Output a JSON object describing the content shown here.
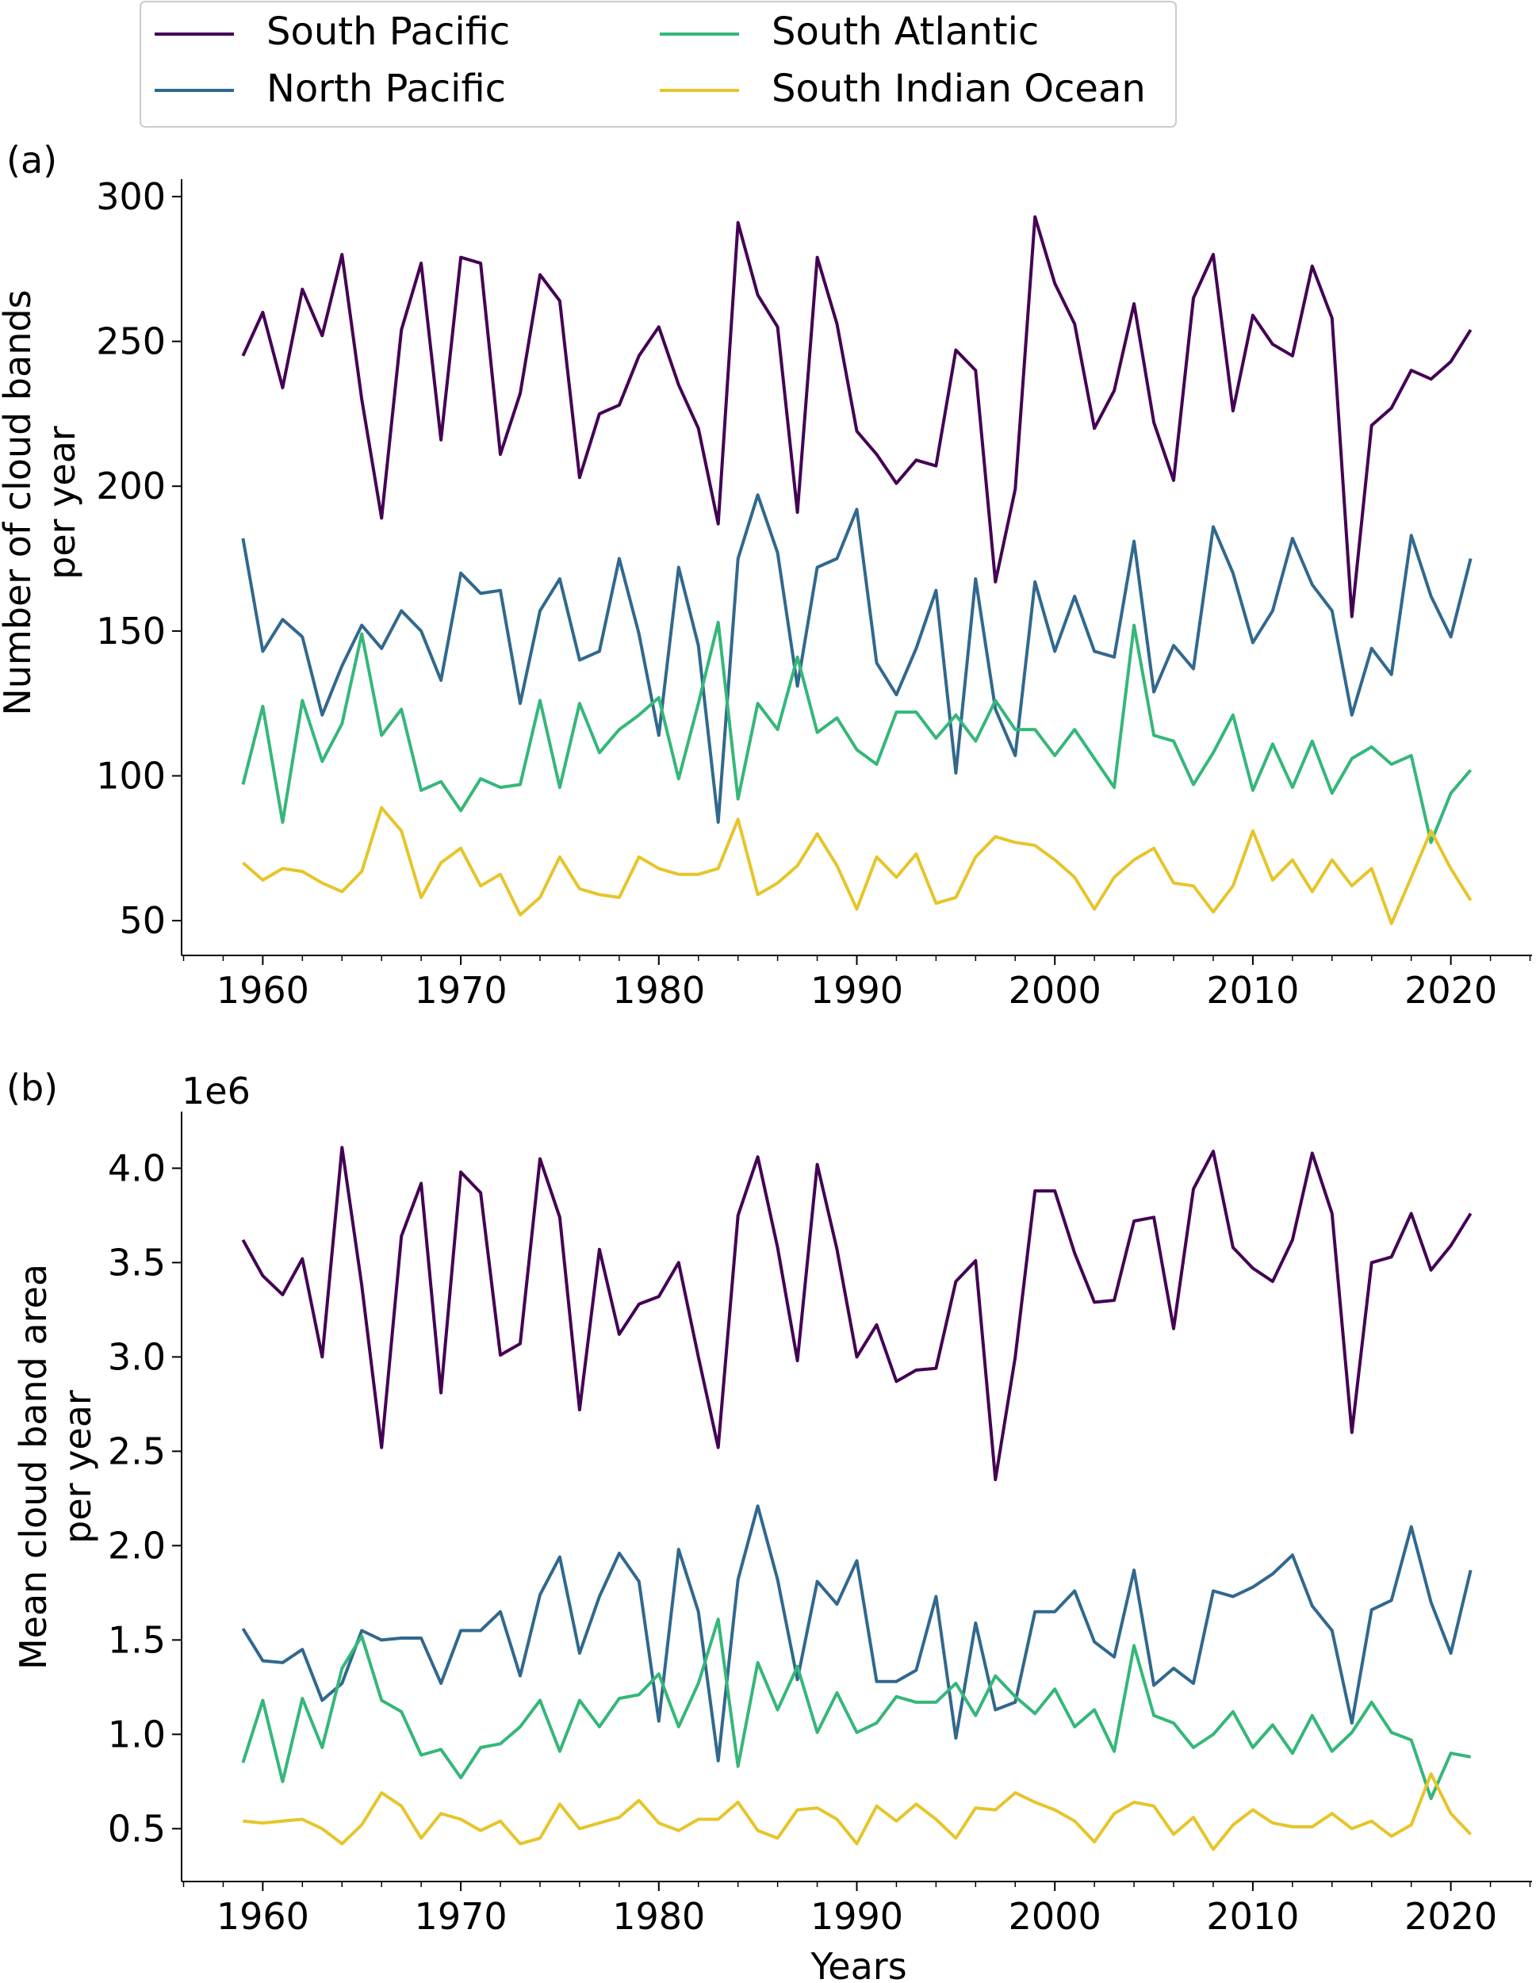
{
  "legend": {
    "location": "top, above panel (a)",
    "entries": [
      {
        "label": "South Pacific",
        "color": "#440154"
      },
      {
        "label": "North Pacific",
        "color": "#31688e"
      },
      {
        "label": "South Atlantic",
        "color": "#35b779"
      },
      {
        "label": "South Indian Ocean",
        "color": "#e6c52a"
      }
    ]
  },
  "chart_data": [
    {
      "type": "line",
      "panel_label": "(a)",
      "xlabel": "",
      "ylabel": "Number of cloud bands\nper year",
      "xlim": [
        1955.9,
        2024.1
      ],
      "ylim": [
        38,
        306
      ],
      "x_ticks": [
        1960,
        1970,
        1980,
        1990,
        2000,
        2010,
        2020
      ],
      "y_ticks": [
        50,
        100,
        150,
        200,
        250,
        300
      ],
      "x_start": 1959,
      "grid": false,
      "legend": "top-center",
      "series": [
        {
          "name": "South Pacific",
          "color": "#440154",
          "values": [
            245,
            260,
            234,
            268,
            252,
            280,
            230,
            189,
            254,
            277,
            216,
            279,
            277,
            211,
            232,
            273,
            264,
            203,
            225,
            228,
            245,
            255,
            235,
            220,
            187,
            291,
            266,
            255,
            191,
            279,
            256,
            219,
            211,
            201,
            209,
            207,
            247,
            240,
            167,
            199,
            293,
            270,
            256,
            220,
            233,
            263,
            222,
            202,
            265,
            280,
            226,
            259,
            249,
            245,
            276,
            258,
            155,
            221,
            227,
            240,
            237,
            243,
            254
          ]
        },
        {
          "name": "North Pacific",
          "color": "#31688e",
          "values": [
            182,
            143,
            154,
            148,
            121,
            138,
            152,
            144,
            157,
            150,
            133,
            170,
            163,
            164,
            125,
            157,
            168,
            140,
            143,
            175,
            149,
            114,
            172,
            145,
            84,
            175,
            197,
            177,
            131,
            172,
            175,
            192,
            139,
            128,
            144,
            164,
            101,
            168,
            123,
            107,
            167,
            143,
            162,
            143,
            141,
            181,
            129,
            145,
            137,
            186,
            170,
            146,
            157,
            182,
            166,
            157,
            121,
            144,
            135,
            183,
            162,
            148,
            175
          ]
        },
        {
          "name": "South Atlantic",
          "color": "#35b779",
          "values": [
            97,
            124,
            84,
            126,
            105,
            118,
            149,
            114,
            123,
            95,
            98,
            88,
            99,
            96,
            97,
            126,
            96,
            125,
            108,
            116,
            121,
            127,
            99,
            125,
            153,
            92,
            125,
            116,
            141,
            115,
            120,
            109,
            104,
            122,
            122,
            113,
            121,
            112,
            126,
            116,
            116,
            107,
            116,
            106,
            96,
            152,
            114,
            112,
            97,
            108,
            121,
            95,
            111,
            96,
            112,
            94,
            106,
            110,
            104,
            107,
            77,
            94,
            102
          ]
        },
        {
          "name": "South Indian Ocean",
          "color": "#e6c52a",
          "values": [
            70,
            64,
            68,
            67,
            63,
            60,
            67,
            89,
            81,
            58,
            70,
            75,
            62,
            66,
            52,
            58,
            72,
            61,
            59,
            58,
            72,
            68,
            66,
            66,
            68,
            85,
            59,
            63,
            69,
            80,
            69,
            54,
            72,
            65,
            73,
            56,
            58,
            72,
            79,
            77,
            76,
            71,
            65,
            54,
            65,
            71,
            75,
            63,
            62,
            53,
            62,
            81,
            64,
            71,
            60,
            71,
            62,
            68,
            49,
            65,
            81,
            68,
            57
          ]
        }
      ]
    },
    {
      "type": "line",
      "panel_label": "(b)",
      "xlabel": "Years",
      "ylabel": "Mean cloud band area\nper year",
      "offset_text": "1e6",
      "xlim": [
        1955.9,
        2024.1
      ],
      "ylim": [
        0.22,
        4.3
      ],
      "x_ticks": [
        1960,
        1970,
        1980,
        1990,
        2000,
        2010,
        2020
      ],
      "y_ticks": [
        0.5,
        1.0,
        1.5,
        2.0,
        2.5,
        3.0,
        3.5,
        4.0
      ],
      "y_tick_labels": [
        "0.5",
        "1.0",
        "1.5",
        "2.0",
        "2.5",
        "3.0",
        "3.5",
        "4.0"
      ],
      "x_start": 1959,
      "grid": false,
      "legend": "shared, top of figure",
      "series": [
        {
          "name": "South Pacific",
          "color": "#440154",
          "values": [
            3.62,
            3.43,
            3.33,
            3.52,
            3.0,
            4.11,
            3.38,
            2.52,
            3.64,
            3.92,
            2.81,
            3.98,
            3.87,
            3.01,
            3.07,
            4.05,
            3.74,
            2.72,
            3.57,
            3.12,
            3.28,
            3.32,
            3.5,
            3.0,
            2.52,
            3.75,
            4.06,
            3.58,
            2.98,
            4.02,
            3.57,
            3.0,
            3.17,
            2.87,
            2.93,
            2.94,
            3.4,
            3.51,
            2.35,
            3.0,
            3.88,
            3.88,
            3.55,
            3.29,
            3.3,
            3.72,
            3.74,
            3.15,
            3.89,
            4.09,
            3.58,
            3.47,
            3.4,
            3.62,
            4.08,
            3.76,
            2.6,
            3.5,
            3.53,
            3.76,
            3.46,
            3.59,
            3.76
          ]
        },
        {
          "name": "North Pacific",
          "color": "#31688e",
          "values": [
            1.56,
            1.39,
            1.38,
            1.45,
            1.18,
            1.27,
            1.55,
            1.5,
            1.51,
            1.51,
            1.27,
            1.55,
            1.55,
            1.65,
            1.31,
            1.74,
            1.94,
            1.43,
            1.73,
            1.96,
            1.81,
            1.07,
            1.98,
            1.65,
            0.86,
            1.82,
            2.21,
            1.82,
            1.29,
            1.81,
            1.69,
            1.92,
            1.28,
            1.28,
            1.34,
            1.73,
            0.98,
            1.59,
            1.13,
            1.17,
            1.65,
            1.65,
            1.76,
            1.49,
            1.41,
            1.87,
            1.26,
            1.35,
            1.27,
            1.76,
            1.73,
            1.78,
            1.85,
            1.95,
            1.68,
            1.55,
            1.06,
            1.66,
            1.71,
            2.1,
            1.7,
            1.43,
            1.87
          ]
        },
        {
          "name": "South Atlantic",
          "color": "#35b779",
          "values": [
            0.85,
            1.18,
            0.75,
            1.19,
            0.93,
            1.35,
            1.52,
            1.18,
            1.12,
            0.89,
            0.92,
            0.77,
            0.93,
            0.95,
            1.04,
            1.18,
            0.91,
            1.18,
            1.04,
            1.19,
            1.21,
            1.32,
            1.04,
            1.27,
            1.61,
            0.83,
            1.38,
            1.13,
            1.36,
            1.01,
            1.22,
            1.01,
            1.06,
            1.2,
            1.17,
            1.17,
            1.27,
            1.1,
            1.31,
            1.2,
            1.11,
            1.24,
            1.04,
            1.13,
            0.91,
            1.47,
            1.1,
            1.06,
            0.93,
            1.0,
            1.12,
            0.93,
            1.05,
            0.9,
            1.1,
            0.91,
            1.01,
            1.17,
            1.01,
            0.97,
            0.66,
            0.9,
            0.88
          ]
        },
        {
          "name": "South Indian Ocean",
          "color": "#e6c52a",
          "values": [
            0.54,
            0.53,
            0.54,
            0.55,
            0.5,
            0.42,
            0.52,
            0.69,
            0.62,
            0.45,
            0.58,
            0.55,
            0.49,
            0.54,
            0.42,
            0.45,
            0.63,
            0.5,
            0.53,
            0.56,
            0.65,
            0.53,
            0.49,
            0.55,
            0.55,
            0.64,
            0.49,
            0.45,
            0.6,
            0.61,
            0.55,
            0.42,
            0.62,
            0.54,
            0.63,
            0.55,
            0.45,
            0.61,
            0.6,
            0.69,
            0.64,
            0.6,
            0.54,
            0.43,
            0.58,
            0.64,
            0.62,
            0.47,
            0.56,
            0.39,
            0.52,
            0.6,
            0.53,
            0.51,
            0.51,
            0.58,
            0.5,
            0.54,
            0.46,
            0.52,
            0.79,
            0.58,
            0.47
          ]
        }
      ]
    }
  ]
}
